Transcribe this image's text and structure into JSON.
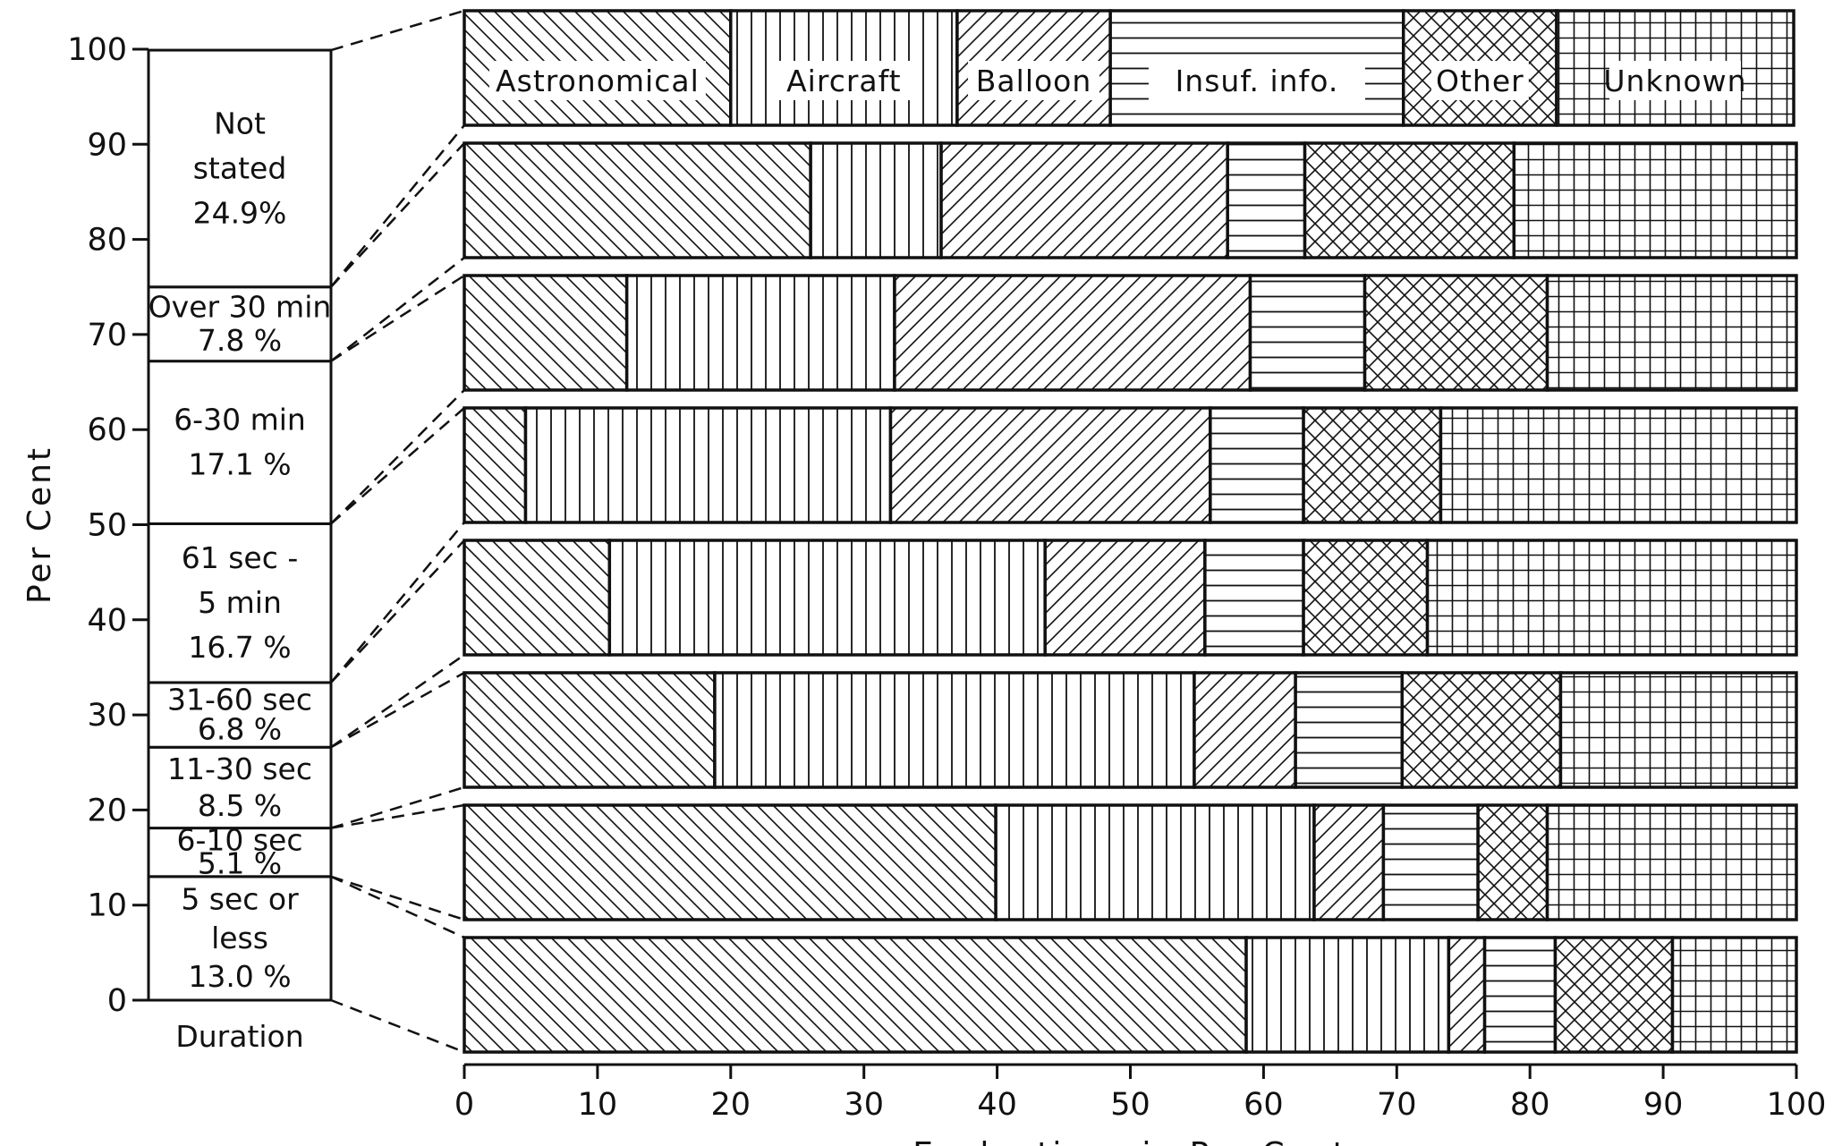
{
  "chart_data": {
    "type": "bar",
    "stacked": true,
    "orientation": "horizontal",
    "xlabel": "Evaluations in Per Cent",
    "xlim": [
      0,
      100
    ],
    "x_ticks": [
      "0",
      "10",
      "20",
      "30",
      "40",
      "50",
      "60",
      "70",
      "80",
      "90",
      "100"
    ],
    "legend": "inline-top-bar",
    "series_names": [
      "Astronomical",
      "Aircraft",
      "Balloon",
      "Insuf. info.",
      "Other",
      "Unknown"
    ],
    "rows": [
      {
        "duration": "Not stated",
        "share": 24.9,
        "values": [
          20.0,
          17.0,
          11.5,
          22.0,
          11.5,
          17.8
        ]
      },
      {
        "duration": "Over 30 min",
        "share": 7.8,
        "values": [
          26.0,
          9.8,
          21.5,
          5.8,
          15.7,
          21.2
        ]
      },
      {
        "duration": "6-30 min",
        "share": 17.1,
        "values": [
          12.2,
          20.1,
          26.7,
          8.6,
          13.7,
          18.7
        ]
      },
      {
        "duration": "61 sec - 5 min",
        "share": 16.7,
        "values": [
          4.6,
          27.4,
          24.0,
          7.0,
          10.3,
          26.7
        ]
      },
      {
        "duration": "31-60 sec",
        "share": 6.8,
        "values": [
          10.9,
          32.7,
          12.0,
          7.4,
          9.3,
          27.7
        ]
      },
      {
        "duration": "11-30 sec",
        "share": 8.5,
        "values": [
          18.8,
          36.0,
          7.6,
          8.0,
          11.9,
          17.7
        ]
      },
      {
        "duration": "6-10 sec",
        "share": 5.1,
        "values": [
          39.9,
          23.9,
          5.2,
          7.1,
          5.2,
          18.7
        ]
      },
      {
        "duration": "5 sec or less",
        "share": 13.0,
        "values": [
          58.7,
          15.2,
          2.7,
          5.3,
          8.8,
          9.3
        ]
      }
    ],
    "duration_column": {
      "ylabel": "Per Cent",
      "ylim": [
        0,
        100
      ],
      "y_ticks": [
        "0",
        "10",
        "20",
        "30",
        "40",
        "50",
        "60",
        "70",
        "80",
        "90",
        "100"
      ],
      "caption": "Duration",
      "segments": [
        {
          "lines": [
            "5 sec or",
            "less",
            "13.0 %"
          ],
          "value": 13.0
        },
        {
          "lines": [
            "6-10 sec",
            "5.1 %"
          ],
          "value": 5.1
        },
        {
          "lines": [
            "11-30 sec",
            "8.5 %"
          ],
          "value": 8.5
        },
        {
          "lines": [
            "31-60 sec",
            "6.8 %"
          ],
          "value": 6.8
        },
        {
          "lines": [
            "61 sec -",
            "5 min",
            "16.7 %"
          ],
          "value": 16.7
        },
        {
          "lines": [
            "6-30 min",
            "17.1 %"
          ],
          "value": 17.1
        },
        {
          "lines": [
            "Over 30 min",
            "7.8 %"
          ],
          "value": 7.8
        },
        {
          "lines": [
            "Not",
            "stated",
            "24.9%"
          ],
          "value": 24.9
        }
      ]
    }
  }
}
